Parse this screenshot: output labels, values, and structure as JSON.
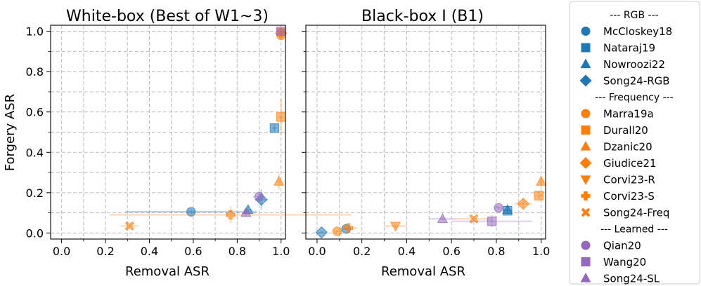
{
  "chart_data": [
    {
      "type": "scatter",
      "title": "White-box (Best of W1~3)",
      "xlabel": "Removal ASR",
      "ylabel": "Forgery ASR",
      "xlim": [
        -0.05,
        1.02
      ],
      "ylim": [
        -0.03,
        1.03
      ],
      "xticks": [
        "0.0",
        "0.2",
        "0.4",
        "0.6",
        "0.8",
        "1.0"
      ],
      "yticks": [
        "0.0",
        "0.2",
        "0.4",
        "0.6",
        "0.8",
        "1.0"
      ],
      "grid": true,
      "points": [
        {
          "series": "McCloskey18",
          "x": 0.59,
          "y": 0.105,
          "xerr": 0.3,
          "yerr": 0.01
        },
        {
          "series": "Nataraj19",
          "x": 0.97,
          "y": 0.52,
          "xerr": 0.01,
          "yerr": 0.02
        },
        {
          "series": "Nowroozi22",
          "x": 0.85,
          "y": 0.115,
          "xerr": 0.02,
          "yerr": 0.02
        },
        {
          "series": "Song24-RGB",
          "x": 0.91,
          "y": 0.165,
          "xerr": 0.03,
          "yerr": 0.05
        },
        {
          "series": "Marra19a",
          "x": 1.0,
          "y": 0.98,
          "xerr": 0.005,
          "yerr": 0.01
        },
        {
          "series": "Durall20",
          "x": 1.0,
          "y": 0.575,
          "xerr": 0.01,
          "yerr": 0.09
        },
        {
          "series": "Dzanic20",
          "x": 0.99,
          "y": 0.255,
          "xerr": 0.01,
          "yerr": 0.04
        },
        {
          "series": "Giudice21",
          "x": 1.0,
          "y": 0.99,
          "xerr": 0.005,
          "yerr": 0.005
        },
        {
          "series": "Corvi23-R",
          "x": 1.0,
          "y": 0.995,
          "xerr": 0.005,
          "yerr": 0.005
        },
        {
          "series": "Corvi23-S",
          "x": 0.77,
          "y": 0.09,
          "xerr": 0.55,
          "yerr": 0.04
        },
        {
          "series": "Song24-Freq",
          "x": 0.31,
          "y": 0.035,
          "xerr": 0.04,
          "yerr": 0.01
        },
        {
          "series": "Qian20",
          "x": 0.9,
          "y": 0.18,
          "xerr": 0.03,
          "yerr": 0.03
        },
        {
          "series": "Wang20",
          "x": 1.0,
          "y": 1.0,
          "xerr": 0.005,
          "yerr": 0.005
        },
        {
          "series": "Song24-SL",
          "x": 0.84,
          "y": 0.1,
          "xerr": 0.02,
          "yerr": 0.02
        }
      ]
    },
    {
      "type": "scatter",
      "title": "Black-box I (B1)",
      "xlabel": "Removal ASR",
      "ylabel": "",
      "xlim": [
        -0.05,
        1.02
      ],
      "ylim": [
        -0.03,
        1.03
      ],
      "xticks": [
        "0.0",
        "0.2",
        "0.4",
        "0.6",
        "0.8",
        "1.0"
      ],
      "yticks": [],
      "grid": true,
      "points": [
        {
          "series": "McCloskey18",
          "x": 0.13,
          "y": 0.02,
          "xerr": 0.02,
          "yerr": 0.005
        },
        {
          "series": "Nataraj19",
          "x": 0.85,
          "y": 0.11,
          "xerr": 0.02,
          "yerr": 0.02
        },
        {
          "series": "Nowroozi22",
          "x": 0.85,
          "y": 0.115,
          "xerr": 0.02,
          "yerr": 0.02
        },
        {
          "series": "Song24-RGB",
          "x": 0.02,
          "y": 0.003,
          "xerr": 0.01,
          "yerr": 0.003
        },
        {
          "series": "Marra19a",
          "x": 0.09,
          "y": 0.008,
          "xerr": 0.02,
          "yerr": 0.005
        },
        {
          "series": "Durall20",
          "x": 0.99,
          "y": 0.185,
          "xerr": 0.02,
          "yerr": 0.02
        },
        {
          "series": "Dzanic20",
          "x": 1.0,
          "y": 0.255,
          "xerr": 0.01,
          "yerr": 0.03
        },
        {
          "series": "Giudice21",
          "x": 0.92,
          "y": 0.145,
          "xerr": 0.04,
          "yerr": 0.02
        },
        {
          "series": "Corvi23-R",
          "x": 0.35,
          "y": 0.035,
          "xerr": 0.05,
          "yerr": 0.01
        },
        {
          "series": "Corvi23-S",
          "x": 0.14,
          "y": 0.025,
          "xerr": 0.04,
          "yerr": 0.005
        },
        {
          "series": "Song24-Freq",
          "x": 0.7,
          "y": 0.07,
          "xerr": 0.08,
          "yerr": 0.01
        },
        {
          "series": "Qian20",
          "x": 0.81,
          "y": 0.125,
          "xerr": 0.02,
          "yerr": 0.01
        },
        {
          "series": "Wang20",
          "x": 0.78,
          "y": 0.058,
          "xerr": 0.18,
          "yerr": 0.03
        },
        {
          "series": "Song24-SL",
          "x": 0.56,
          "y": 0.07,
          "xerr": 0.06,
          "yerr": 0.01
        }
      ]
    }
  ],
  "legend": {
    "placement": "right",
    "entries": [
      {
        "label": "--- RGB ---",
        "header": true
      },
      {
        "label": "McCloskey18",
        "marker": "circle",
        "color": "#1f77b4"
      },
      {
        "label": "Nataraj19",
        "marker": "square",
        "color": "#1f77b4"
      },
      {
        "label": "Nowroozi22",
        "marker": "triangle-up",
        "color": "#1f77b4"
      },
      {
        "label": "Song24-RGB",
        "marker": "diamond",
        "color": "#1f77b4"
      },
      {
        "label": "--- Frequency ---",
        "header": true
      },
      {
        "label": "Marra19a",
        "marker": "circle",
        "color": "#ff7f0e"
      },
      {
        "label": "Durall20",
        "marker": "square",
        "color": "#ff7f0e"
      },
      {
        "label": "Dzanic20",
        "marker": "triangle-up",
        "color": "#ff7f0e"
      },
      {
        "label": "Giudice21",
        "marker": "diamond",
        "color": "#ff7f0e"
      },
      {
        "label": "Corvi23-R",
        "marker": "triangle-down",
        "color": "#ff7f0e"
      },
      {
        "label": "Corvi23-S",
        "marker": "plus",
        "color": "#ff7f0e"
      },
      {
        "label": "Song24-Freq",
        "marker": "x",
        "color": "#ff7f0e"
      },
      {
        "label": "--- Learned ---",
        "header": true
      },
      {
        "label": "Qian20",
        "marker": "circle",
        "color": "#9467bd"
      },
      {
        "label": "Wang20",
        "marker": "square",
        "color": "#9467bd"
      },
      {
        "label": "Song24-SL",
        "marker": "triangle-up",
        "color": "#9467bd"
      }
    ]
  }
}
